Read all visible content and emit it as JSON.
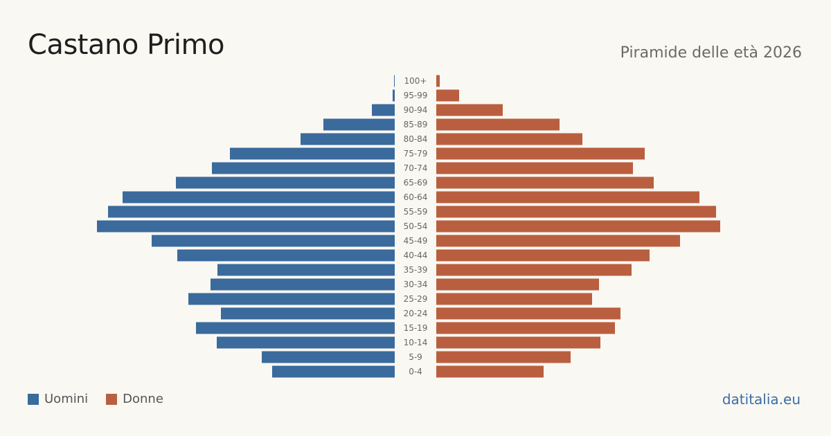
{
  "header": {
    "title": "Castano Primo",
    "subtitle": "Piramide delle età 2026"
  },
  "legend": {
    "male_label": "Uomini",
    "female_label": "Donne"
  },
  "brand": "datitalia.eu",
  "colors": {
    "male": "#3b6a9c",
    "female": "#b95f3f",
    "background": "#faf8f3"
  },
  "chart_data": {
    "type": "bar",
    "orientation": "horizontal-pyramid",
    "categories": [
      "100+",
      "95-99",
      "90-94",
      "85-89",
      "80-84",
      "75-79",
      "70-74",
      "65-69",
      "60-64",
      "55-59",
      "50-54",
      "45-49",
      "40-44",
      "35-39",
      "30-34",
      "25-29",
      "20-24",
      "15-19",
      "10-14",
      "5-9",
      "0-4"
    ],
    "series": [
      {
        "name": "Uomini",
        "values": [
          1,
          3,
          33,
          103,
          136,
          238,
          264,
          316,
          393,
          414,
          430,
          351,
          314,
          256,
          266,
          298,
          251,
          287,
          257,
          192,
          177
        ]
      },
      {
        "name": "Donne",
        "values": [
          5,
          33,
          96,
          178,
          211,
          301,
          284,
          314,
          380,
          404,
          410,
          352,
          308,
          282,
          235,
          225,
          266,
          258,
          237,
          194,
          155
        ]
      }
    ],
    "title": "Piramide delle età 2026",
    "legend_position": "bottom-left",
    "grid": false
  }
}
